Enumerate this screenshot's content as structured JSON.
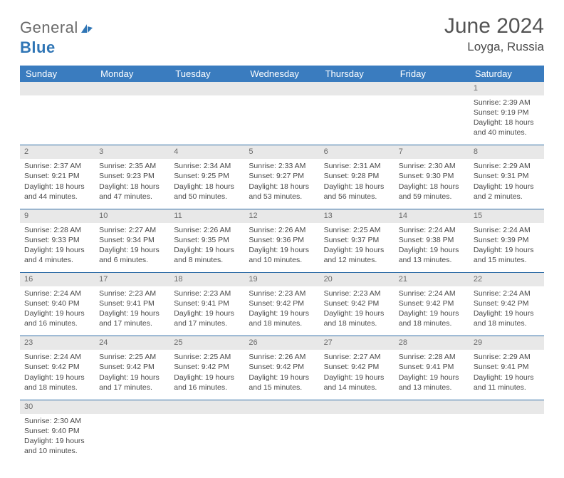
{
  "logo": {
    "part1": "General",
    "part2": "Blue"
  },
  "title": "June 2024",
  "location": "Loyga, Russia",
  "colors": {
    "header_bg": "#3a7cbf",
    "header_text": "#ffffff",
    "daynum_bg": "#e8e8e8",
    "text": "#4a4a4a",
    "rule": "#2f6da6",
    "logo_blue": "#2f75b5"
  },
  "weekdays": [
    "Sunday",
    "Monday",
    "Tuesday",
    "Wednesday",
    "Thursday",
    "Friday",
    "Saturday"
  ],
  "weeks": [
    [
      null,
      null,
      null,
      null,
      null,
      null,
      {
        "n": "1",
        "sr": "Sunrise: 2:39 AM",
        "ss": "Sunset: 9:19 PM",
        "d1": "Daylight: 18 hours",
        "d2": "and 40 minutes."
      }
    ],
    [
      {
        "n": "2",
        "sr": "Sunrise: 2:37 AM",
        "ss": "Sunset: 9:21 PM",
        "d1": "Daylight: 18 hours",
        "d2": "and 44 minutes."
      },
      {
        "n": "3",
        "sr": "Sunrise: 2:35 AM",
        "ss": "Sunset: 9:23 PM",
        "d1": "Daylight: 18 hours",
        "d2": "and 47 minutes."
      },
      {
        "n": "4",
        "sr": "Sunrise: 2:34 AM",
        "ss": "Sunset: 9:25 PM",
        "d1": "Daylight: 18 hours",
        "d2": "and 50 minutes."
      },
      {
        "n": "5",
        "sr": "Sunrise: 2:33 AM",
        "ss": "Sunset: 9:27 PM",
        "d1": "Daylight: 18 hours",
        "d2": "and 53 minutes."
      },
      {
        "n": "6",
        "sr": "Sunrise: 2:31 AM",
        "ss": "Sunset: 9:28 PM",
        "d1": "Daylight: 18 hours",
        "d2": "and 56 minutes."
      },
      {
        "n": "7",
        "sr": "Sunrise: 2:30 AM",
        "ss": "Sunset: 9:30 PM",
        "d1": "Daylight: 18 hours",
        "d2": "and 59 minutes."
      },
      {
        "n": "8",
        "sr": "Sunrise: 2:29 AM",
        "ss": "Sunset: 9:31 PM",
        "d1": "Daylight: 19 hours",
        "d2": "and 2 minutes."
      }
    ],
    [
      {
        "n": "9",
        "sr": "Sunrise: 2:28 AM",
        "ss": "Sunset: 9:33 PM",
        "d1": "Daylight: 19 hours",
        "d2": "and 4 minutes."
      },
      {
        "n": "10",
        "sr": "Sunrise: 2:27 AM",
        "ss": "Sunset: 9:34 PM",
        "d1": "Daylight: 19 hours",
        "d2": "and 6 minutes."
      },
      {
        "n": "11",
        "sr": "Sunrise: 2:26 AM",
        "ss": "Sunset: 9:35 PM",
        "d1": "Daylight: 19 hours",
        "d2": "and 8 minutes."
      },
      {
        "n": "12",
        "sr": "Sunrise: 2:26 AM",
        "ss": "Sunset: 9:36 PM",
        "d1": "Daylight: 19 hours",
        "d2": "and 10 minutes."
      },
      {
        "n": "13",
        "sr": "Sunrise: 2:25 AM",
        "ss": "Sunset: 9:37 PM",
        "d1": "Daylight: 19 hours",
        "d2": "and 12 minutes."
      },
      {
        "n": "14",
        "sr": "Sunrise: 2:24 AM",
        "ss": "Sunset: 9:38 PM",
        "d1": "Daylight: 19 hours",
        "d2": "and 13 minutes."
      },
      {
        "n": "15",
        "sr": "Sunrise: 2:24 AM",
        "ss": "Sunset: 9:39 PM",
        "d1": "Daylight: 19 hours",
        "d2": "and 15 minutes."
      }
    ],
    [
      {
        "n": "16",
        "sr": "Sunrise: 2:24 AM",
        "ss": "Sunset: 9:40 PM",
        "d1": "Daylight: 19 hours",
        "d2": "and 16 minutes."
      },
      {
        "n": "17",
        "sr": "Sunrise: 2:23 AM",
        "ss": "Sunset: 9:41 PM",
        "d1": "Daylight: 19 hours",
        "d2": "and 17 minutes."
      },
      {
        "n": "18",
        "sr": "Sunrise: 2:23 AM",
        "ss": "Sunset: 9:41 PM",
        "d1": "Daylight: 19 hours",
        "d2": "and 17 minutes."
      },
      {
        "n": "19",
        "sr": "Sunrise: 2:23 AM",
        "ss": "Sunset: 9:42 PM",
        "d1": "Daylight: 19 hours",
        "d2": "and 18 minutes."
      },
      {
        "n": "20",
        "sr": "Sunrise: 2:23 AM",
        "ss": "Sunset: 9:42 PM",
        "d1": "Daylight: 19 hours",
        "d2": "and 18 minutes."
      },
      {
        "n": "21",
        "sr": "Sunrise: 2:24 AM",
        "ss": "Sunset: 9:42 PM",
        "d1": "Daylight: 19 hours",
        "d2": "and 18 minutes."
      },
      {
        "n": "22",
        "sr": "Sunrise: 2:24 AM",
        "ss": "Sunset: 9:42 PM",
        "d1": "Daylight: 19 hours",
        "d2": "and 18 minutes."
      }
    ],
    [
      {
        "n": "23",
        "sr": "Sunrise: 2:24 AM",
        "ss": "Sunset: 9:42 PM",
        "d1": "Daylight: 19 hours",
        "d2": "and 18 minutes."
      },
      {
        "n": "24",
        "sr": "Sunrise: 2:25 AM",
        "ss": "Sunset: 9:42 PM",
        "d1": "Daylight: 19 hours",
        "d2": "and 17 minutes."
      },
      {
        "n": "25",
        "sr": "Sunrise: 2:25 AM",
        "ss": "Sunset: 9:42 PM",
        "d1": "Daylight: 19 hours",
        "d2": "and 16 minutes."
      },
      {
        "n": "26",
        "sr": "Sunrise: 2:26 AM",
        "ss": "Sunset: 9:42 PM",
        "d1": "Daylight: 19 hours",
        "d2": "and 15 minutes."
      },
      {
        "n": "27",
        "sr": "Sunrise: 2:27 AM",
        "ss": "Sunset: 9:42 PM",
        "d1": "Daylight: 19 hours",
        "d2": "and 14 minutes."
      },
      {
        "n": "28",
        "sr": "Sunrise: 2:28 AM",
        "ss": "Sunset: 9:41 PM",
        "d1": "Daylight: 19 hours",
        "d2": "and 13 minutes."
      },
      {
        "n": "29",
        "sr": "Sunrise: 2:29 AM",
        "ss": "Sunset: 9:41 PM",
        "d1": "Daylight: 19 hours",
        "d2": "and 11 minutes."
      }
    ],
    [
      {
        "n": "30",
        "sr": "Sunrise: 2:30 AM",
        "ss": "Sunset: 9:40 PM",
        "d1": "Daylight: 19 hours",
        "d2": "and 10 minutes."
      },
      null,
      null,
      null,
      null,
      null,
      null
    ]
  ]
}
